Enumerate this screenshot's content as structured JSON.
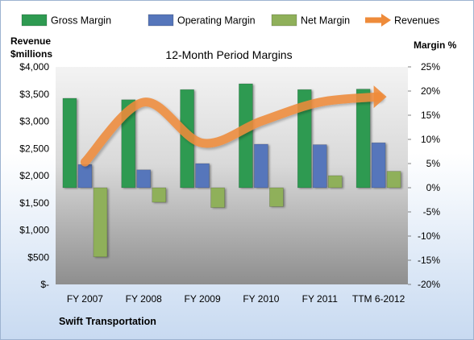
{
  "chart_data": {
    "type": "bar",
    "title": "12-Month Period Margins",
    "categories": [
      "FY 2007",
      "FY 2008",
      "FY 2009",
      "FY 2010",
      "FY 2011",
      "TTM 6-2012"
    ],
    "series": [
      {
        "name": "Gross Margin",
        "axis": "right",
        "values": [
          18.5,
          18.2,
          20.3,
          21.5,
          20.3,
          20.4
        ],
        "color": "#2e9a51"
      },
      {
        "name": "Operating Margin",
        "axis": "right",
        "values": [
          4.8,
          3.7,
          5.0,
          9.0,
          8.9,
          9.3
        ],
        "color": "#5676bb"
      },
      {
        "name": "Net Margin",
        "axis": "right",
        "values": [
          -14.3,
          -3.0,
          -4.1,
          -3.9,
          2.5,
          3.4
        ],
        "color": "#8fb05a"
      },
      {
        "name": "Revenues",
        "axis": "left",
        "type": "line",
        "values": [
          2250,
          3350,
          2600,
          3000,
          3350,
          3450
        ],
        "color": "#ee8b3a"
      }
    ],
    "left_axis": {
      "label_line1": "Revenue",
      "label_line2": "$millions",
      "ylim": [
        0,
        4000
      ],
      "ticks": [
        "$4,000",
        "$3,500",
        "$3,000",
        "$2,500",
        "$2,000",
        "$1,500",
        "$1,000",
        "$500",
        "$-"
      ]
    },
    "right_axis": {
      "label": "Margin %",
      "ylim": [
        -20,
        25
      ],
      "ticks": [
        "25%",
        "20%",
        "15%",
        "10%",
        "5%",
        "0%",
        "-5%",
        "-10%",
        "-15%",
        "-20%"
      ]
    },
    "legend_position": "top",
    "grid": false,
    "footer_label": "Swift Transportation"
  }
}
